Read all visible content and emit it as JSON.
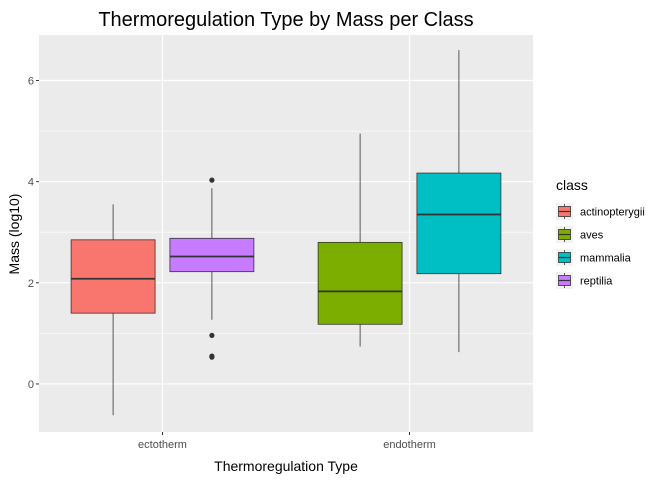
{
  "chart_data": {
    "type": "boxplot",
    "title": "Thermoregulation Type by Mass per Class",
    "xlabel": "Thermoregulation Type",
    "ylabel": "Mass (log10)",
    "categories": [
      "ectotherm",
      "endotherm"
    ],
    "ylim": [
      -0.95,
      6.9
    ],
    "yticks": [
      0,
      2,
      4,
      6
    ],
    "grid": true,
    "legend": {
      "title": "class",
      "position": "right",
      "entries": [
        "actinopterygii",
        "aves",
        "mammalia",
        "reptilia"
      ]
    },
    "series": [
      {
        "name": "actinopterygii",
        "color": "#F8766D",
        "category": "ectotherm",
        "slot": 0,
        "whisker_low": -0.62,
        "q1": 1.4,
        "median": 2.08,
        "q3": 2.85,
        "whisker_high": 3.55,
        "outliers": []
      },
      {
        "name": "reptilia",
        "color": "#C77CFF",
        "category": "ectotherm",
        "slot": 1,
        "whisker_low": 1.27,
        "q1": 2.22,
        "median": 2.52,
        "q3": 2.88,
        "whisker_high": 3.87,
        "outliers": [
          4.03,
          0.96,
          0.55,
          0.53
        ]
      },
      {
        "name": "aves",
        "color": "#7CAE00",
        "category": "endotherm",
        "slot": 0,
        "whisker_low": 0.74,
        "q1": 1.18,
        "median": 1.83,
        "q3": 2.8,
        "whisker_high": 4.95,
        "outliers": []
      },
      {
        "name": "mammalia",
        "color": "#00BFC4",
        "category": "endotherm",
        "slot": 1,
        "whisker_low": 0.63,
        "q1": 2.18,
        "median": 3.35,
        "q3": 4.17,
        "whisker_high": 6.6,
        "outliers": []
      }
    ]
  }
}
